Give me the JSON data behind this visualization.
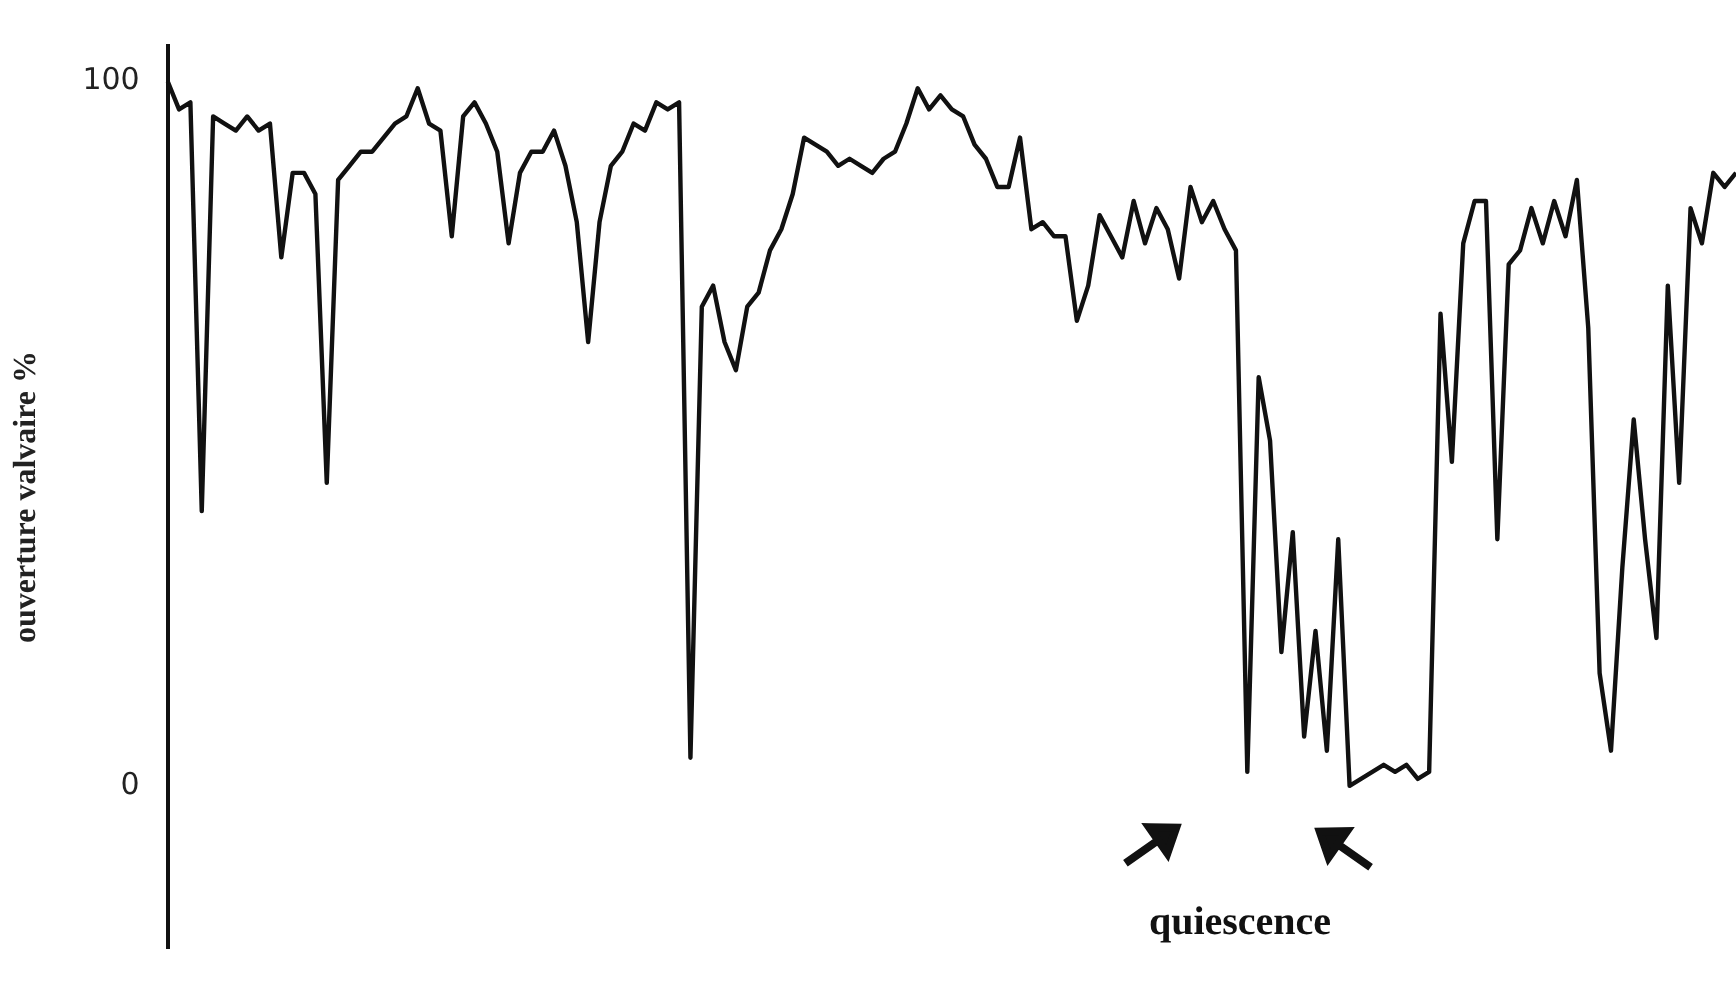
{
  "chart_data": {
    "type": "line",
    "ylabel": "ouverture valvaire %",
    "ylim": [
      -23,
      105
    ],
    "yticks": [
      0,
      100
    ],
    "grid": false,
    "legend": false,
    "marker": "none",
    "line_style": "solid",
    "tick_labels": "y",
    "annotations": [
      "quiescence"
    ],
    "categories": [
      null,
      null,
      null,
      null,
      null,
      null,
      null,
      null,
      null,
      null,
      null,
      null,
      null,
      null,
      null,
      null,
      null,
      null,
      null,
      null,
      null,
      null,
      null,
      null,
      null,
      null,
      null,
      null,
      null,
      null,
      null,
      null,
      null,
      null,
      null,
      null,
      null,
      null,
      null,
      null,
      null,
      null,
      null,
      null,
      null,
      null,
      null,
      null,
      null,
      null,
      null,
      null,
      null,
      null,
      null,
      null,
      null,
      null,
      null,
      null,
      null,
      null,
      null,
      null,
      null,
      null,
      null,
      null,
      null,
      null,
      null,
      null,
      null,
      null,
      null,
      null,
      null,
      null,
      null,
      null,
      null,
      null,
      null,
      null,
      null,
      null,
      null,
      null,
      null,
      null,
      null,
      null,
      null,
      null,
      null,
      null,
      null,
      null,
      null,
      null,
      null,
      null,
      null,
      null,
      null,
      null,
      null,
      null,
      null,
      null,
      null,
      null,
      null,
      null,
      null,
      null,
      null,
      null,
      null,
      null,
      null,
      null,
      null,
      null,
      null,
      null,
      null,
      null,
      null,
      null,
      null,
      null,
      null,
      null,
      null,
      null,
      null,
      null,
      null
    ],
    "series": [
      {
        "color": "#111111",
        "values": [
          100,
          96,
          97,
          39,
          95,
          94,
          93,
          95,
          93,
          94,
          75,
          87,
          87,
          84,
          43,
          86,
          88,
          90,
          90,
          92,
          94,
          95,
          99,
          94,
          93,
          78,
          95,
          97,
          94,
          90,
          77,
          87,
          90,
          90,
          93,
          88,
          80,
          63,
          80,
          88,
          90,
          94,
          93,
          97,
          96,
          97,
          4,
          68,
          71,
          63,
          59,
          68,
          70,
          76,
          79,
          84,
          92,
          91,
          90,
          88,
          89,
          88,
          87,
          89,
          90,
          94,
          99,
          96,
          98,
          96,
          95,
          91,
          89,
          85,
          85,
          92,
          79,
          80,
          78,
          78,
          66,
          71,
          81,
          78,
          75,
          83,
          77,
          82,
          79,
          72,
          85,
          80,
          83,
          79,
          76,
          2,
          58,
          49,
          19,
          36,
          7,
          22,
          5,
          35,
          0,
          1,
          2,
          3,
          2,
          3,
          1,
          2,
          67,
          46,
          77,
          83,
          83,
          35,
          74,
          76,
          82,
          77,
          83,
          78,
          86,
          65,
          16,
          5,
          31,
          52,
          35,
          21,
          71,
          43,
          82,
          77,
          87,
          85,
          87
        ]
      }
    ]
  }
}
